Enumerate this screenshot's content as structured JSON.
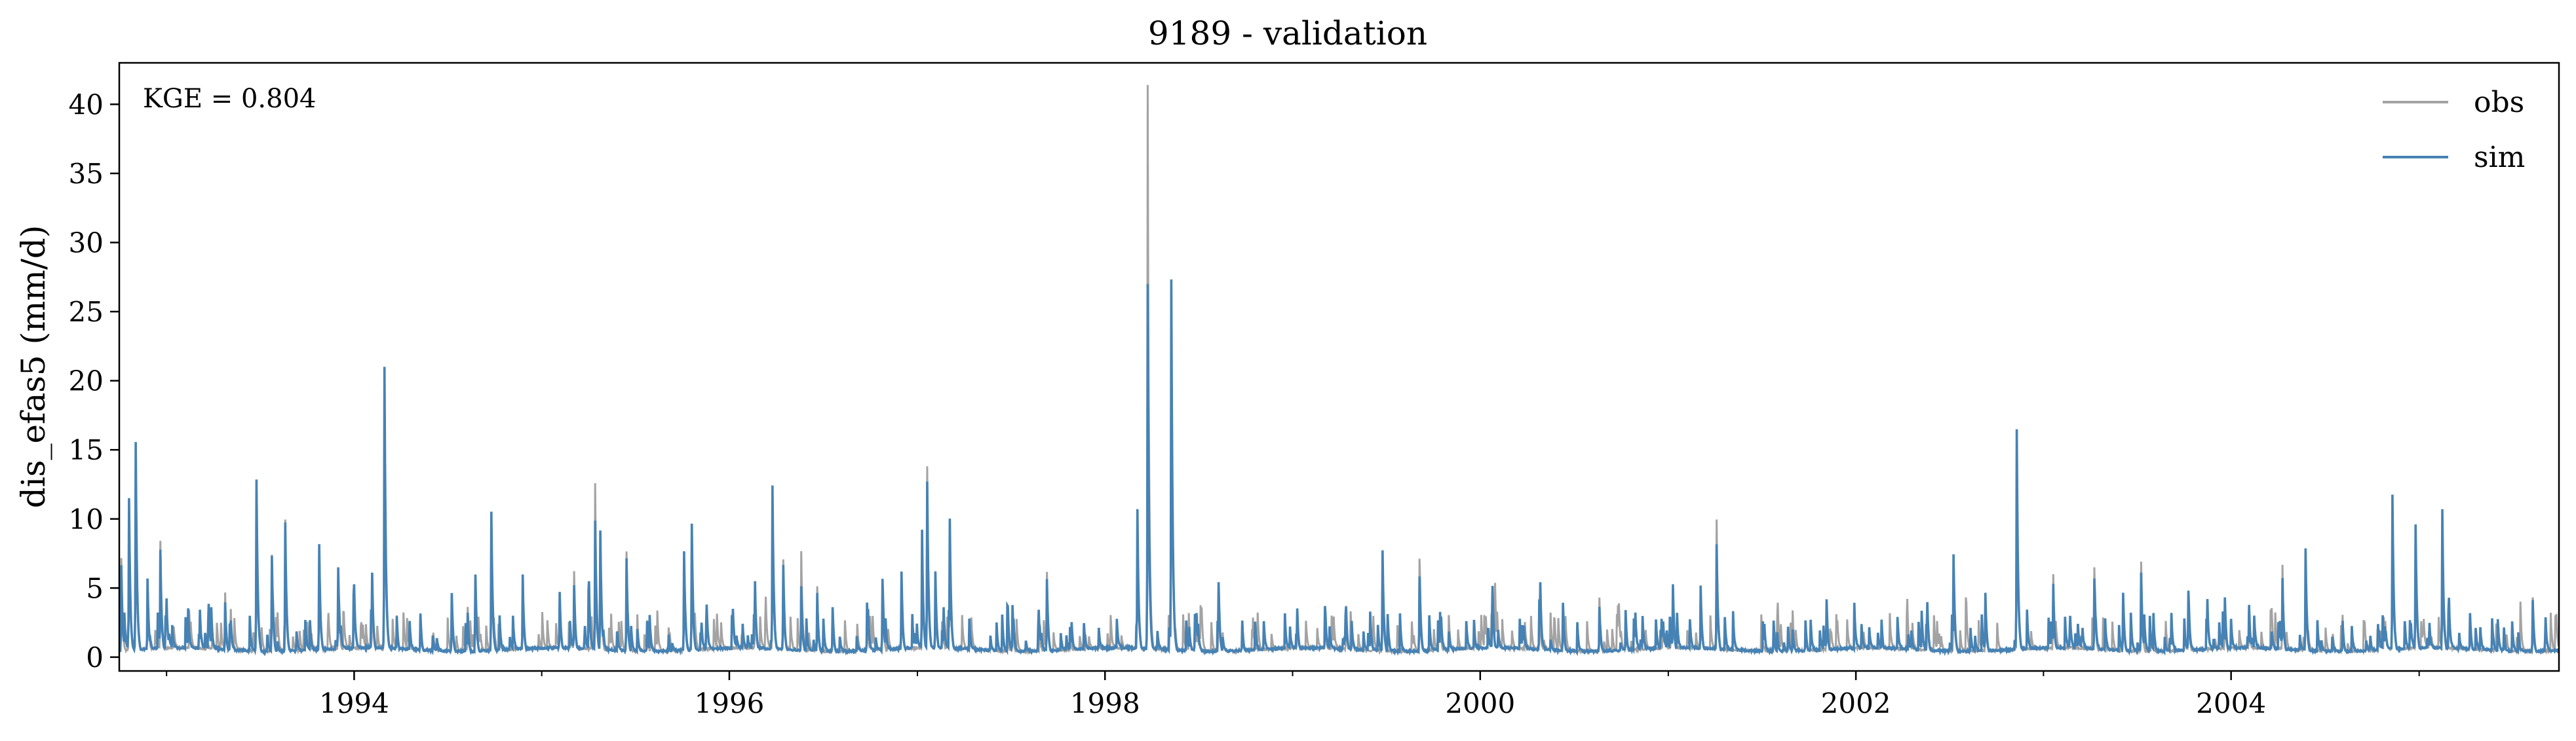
{
  "chart_data": {
    "type": "line",
    "title": "9189 - validation",
    "xlabel": "",
    "ylabel": "dis_efas5 (mm/d)",
    "annotation": "KGE = 0.804",
    "xlim": [
      "1992-10-01",
      "2005-09-30"
    ],
    "ylim": [
      -1,
      43
    ],
    "x_ticks_major": [
      "1994",
      "1996",
      "1998",
      "2000",
      "2002",
      "2004"
    ],
    "x_ticks_minor": [
      "1993",
      "1995",
      "1997",
      "1999",
      "2001",
      "2003",
      "2005"
    ],
    "y_ticks": [
      "0",
      "5",
      "10",
      "15",
      "20",
      "25",
      "30",
      "35",
      "40"
    ],
    "grid": false,
    "legend_position": "top-right",
    "colors": {
      "obs": "#a3a3a3",
      "sim": "#4682b4"
    },
    "series": [
      {
        "name": "obs",
        "peaks": [
          [
            "1992-10-05",
            7.0
          ],
          [
            "1992-10-20",
            11.0
          ],
          [
            "1992-11-02",
            15.0
          ],
          [
            "1992-11-25",
            5.5
          ],
          [
            "1992-12-20",
            8.2
          ],
          [
            "1993-04-25",
            4.5
          ],
          [
            "1993-06-25",
            12.5
          ],
          [
            "1993-07-25",
            7.2
          ],
          [
            "1993-08-20",
            9.6
          ],
          [
            "1993-10-25",
            8.0
          ],
          [
            "1993-12-01",
            6.3
          ],
          [
            "1994-02-05",
            5.5
          ],
          [
            "1994-03-01",
            20.5
          ],
          [
            "1994-03-25",
            2.8
          ],
          [
            "1994-05-10",
            3.0
          ],
          [
            "1994-07-10",
            4.5
          ],
          [
            "1994-08-10",
            3.5
          ],
          [
            "1994-08-25",
            5.5
          ],
          [
            "1994-09-25",
            10.3
          ],
          [
            "1994-11-25",
            5.8
          ],
          [
            "1995-02-05",
            4.5
          ],
          [
            "1995-03-05",
            6.0
          ],
          [
            "1995-04-15",
            12.4
          ],
          [
            "1995-04-25",
            9.0
          ],
          [
            "1995-06-15",
            7.5
          ],
          [
            "1995-07-25",
            2.5
          ],
          [
            "1995-09-05",
            2.0
          ],
          [
            "1995-10-05",
            7.0
          ],
          [
            "1995-10-20",
            9.5
          ],
          [
            "1996-02-20",
            5.0
          ],
          [
            "1996-03-25",
            12.0
          ],
          [
            "1996-04-15",
            6.5
          ],
          [
            "1996-05-20",
            7.5
          ],
          [
            "1996-06-20",
            5.0
          ],
          [
            "1996-07-20",
            3.5
          ],
          [
            "1996-09-25",
            3.5
          ],
          [
            "1996-10-25",
            5.5
          ],
          [
            "1996-12-01",
            6.0
          ],
          [
            "1997-01-10",
            8.5
          ],
          [
            "1997-01-20",
            13.6
          ],
          [
            "1997-02-05",
            6.0
          ],
          [
            "1997-03-05",
            9.0
          ],
          [
            "1997-07-05",
            3.0
          ],
          [
            "1997-09-10",
            6.0
          ],
          [
            "1997-10-25",
            2.0
          ],
          [
            "1997-12-20",
            1.5
          ],
          [
            "1998-03-05",
            10.0
          ],
          [
            "1998-03-25",
            41.2
          ],
          [
            "1998-05-10",
            26.8
          ],
          [
            "1998-06-25",
            3.0
          ],
          [
            "1998-08-10",
            5.0
          ],
          [
            "1998-09-25",
            2.5
          ],
          [
            "1999-01-10",
            3.0
          ],
          [
            "1999-03-05",
            3.5
          ],
          [
            "1999-04-15",
            3.0
          ],
          [
            "1999-06-25",
            7.5
          ],
          [
            "1999-09-05",
            7.0
          ],
          [
            "1999-10-15",
            3.0
          ],
          [
            "1999-12-20",
            2.0
          ],
          [
            "2000-01-25",
            4.5
          ],
          [
            "2000-04-25",
            4.0
          ],
          [
            "2000-06-10",
            3.8
          ],
          [
            "2000-08-20",
            4.2
          ],
          [
            "2000-10-10",
            2.8
          ],
          [
            "2001-01-10",
            5.0
          ],
          [
            "2001-03-05",
            5.0
          ],
          [
            "2001-04-05",
            9.8
          ],
          [
            "2001-07-25",
            2.5
          ],
          [
            "2001-09-25",
            2.5
          ],
          [
            "2001-11-05",
            4.0
          ],
          [
            "2002-02-20",
            2.5
          ],
          [
            "2002-05-20",
            3.5
          ],
          [
            "2002-07-10",
            7.0
          ],
          [
            "2002-09-10",
            4.5
          ],
          [
            "2002-11-10",
            16.0
          ],
          [
            "2003-01-20",
            5.8
          ],
          [
            "2003-04-10",
            6.2
          ],
          [
            "2003-06-05",
            4.5
          ],
          [
            "2003-07-10",
            6.8
          ],
          [
            "2003-10-10",
            4.0
          ],
          [
            "2003-12-20",
            4.0
          ],
          [
            "2004-02-05",
            3.5
          ],
          [
            "2004-04-10",
            6.5
          ],
          [
            "2004-05-25",
            7.5
          ],
          [
            "2004-08-05",
            2.8
          ],
          [
            "2004-11-10",
            11.0
          ],
          [
            "2004-12-25",
            9.0
          ],
          [
            "2005-02-15",
            7.5
          ],
          [
            "2005-04-10",
            3.0
          ],
          [
            "2005-06-15",
            2.0
          ],
          [
            "2005-08-10",
            4.2
          ]
        ]
      },
      {
        "name": "sim",
        "peaks": [
          [
            "1992-10-05",
            6.5
          ],
          [
            "1992-10-20",
            11.2
          ],
          [
            "1992-11-02",
            15.4
          ],
          [
            "1992-11-25",
            5.5
          ],
          [
            "1992-12-20",
            7.5
          ],
          [
            "1993-04-25",
            3.8
          ],
          [
            "1993-06-25",
            12.7
          ],
          [
            "1993-07-25",
            7.2
          ],
          [
            "1993-08-20",
            9.6
          ],
          [
            "1993-10-25",
            8.0
          ],
          [
            "1993-12-01",
            6.3
          ],
          [
            "1994-02-05",
            5.6
          ],
          [
            "1994-03-01",
            20.8
          ],
          [
            "1994-03-25",
            2.8
          ],
          [
            "1994-05-10",
            3.0
          ],
          [
            "1994-07-10",
            4.5
          ],
          [
            "1994-08-10",
            3.0
          ],
          [
            "1994-08-25",
            5.5
          ],
          [
            "1994-09-25",
            10.4
          ],
          [
            "1994-11-25",
            5.8
          ],
          [
            "1995-02-05",
            4.5
          ],
          [
            "1995-03-05",
            5.0
          ],
          [
            "1995-04-15",
            9.7
          ],
          [
            "1995-04-25",
            9.0
          ],
          [
            "1995-06-15",
            7.0
          ],
          [
            "1995-07-25",
            2.5
          ],
          [
            "1995-09-05",
            1.5
          ],
          [
            "1995-10-05",
            7.5
          ],
          [
            "1995-10-20",
            9.5
          ],
          [
            "1996-02-20",
            5.0
          ],
          [
            "1996-03-25",
            12.2
          ],
          [
            "1996-04-15",
            6.5
          ],
          [
            "1996-05-20",
            5.0
          ],
          [
            "1996-06-20",
            4.5
          ],
          [
            "1996-07-20",
            3.5
          ],
          [
            "1996-09-25",
            3.5
          ],
          [
            "1996-10-25",
            5.5
          ],
          [
            "1996-12-01",
            6.0
          ],
          [
            "1997-01-10",
            9.0
          ],
          [
            "1997-01-20",
            12.5
          ],
          [
            "1997-02-05",
            6.0
          ],
          [
            "1997-03-05",
            9.5
          ],
          [
            "1997-07-05",
            3.0
          ],
          [
            "1997-09-10",
            5.5
          ],
          [
            "1997-10-25",
            2.0
          ],
          [
            "1997-12-20",
            1.5
          ],
          [
            "1998-03-05",
            10.3
          ],
          [
            "1998-03-25",
            26.8
          ],
          [
            "1998-05-10",
            27.1
          ],
          [
            "1998-06-25",
            3.0
          ],
          [
            "1998-08-10",
            5.0
          ],
          [
            "1998-09-25",
            2.5
          ],
          [
            "1999-01-10",
            3.2
          ],
          [
            "1999-03-05",
            3.5
          ],
          [
            "1999-04-15",
            3.0
          ],
          [
            "1999-06-25",
            7.6
          ],
          [
            "1999-09-05",
            5.5
          ],
          [
            "1999-10-15",
            3.0
          ],
          [
            "1999-12-20",
            2.0
          ],
          [
            "2000-01-25",
            4.5
          ],
          [
            "2000-04-25",
            4.0
          ],
          [
            "2000-06-10",
            3.8
          ],
          [
            "2000-08-20",
            3.5
          ],
          [
            "2000-10-10",
            2.8
          ],
          [
            "2001-01-10",
            5.0
          ],
          [
            "2001-03-05",
            5.0
          ],
          [
            "2001-04-05",
            8.0
          ],
          [
            "2001-07-25",
            2.5
          ],
          [
            "2001-09-25",
            2.5
          ],
          [
            "2001-11-05",
            4.0
          ],
          [
            "2002-02-20",
            2.5
          ],
          [
            "2002-05-20",
            3.5
          ],
          [
            "2002-07-10",
            7.1
          ],
          [
            "2002-09-10",
            4.5
          ],
          [
            "2002-11-10",
            16.3
          ],
          [
            "2003-01-20",
            5.0
          ],
          [
            "2003-04-10",
            5.5
          ],
          [
            "2003-06-05",
            4.5
          ],
          [
            "2003-07-10",
            6.0
          ],
          [
            "2003-10-10",
            4.0
          ],
          [
            "2003-12-20",
            4.0
          ],
          [
            "2004-02-05",
            3.5
          ],
          [
            "2004-04-10",
            5.5
          ],
          [
            "2004-05-25",
            7.7
          ],
          [
            "2004-08-05",
            2.5
          ],
          [
            "2004-11-10",
            11.6
          ],
          [
            "2004-12-25",
            9.4
          ],
          [
            "2005-02-15",
            10.5
          ],
          [
            "2005-04-10",
            3.0
          ],
          [
            "2005-06-15",
            2.0
          ],
          [
            "2005-08-10",
            4.0
          ]
        ]
      }
    ]
  }
}
